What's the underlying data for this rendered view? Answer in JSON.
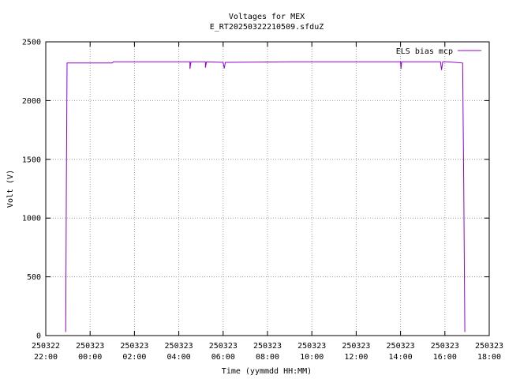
{
  "chart_data": {
    "type": "line",
    "title": "Voltages for MEX",
    "subtitle": "E_RT20250322210509.sfduZ",
    "xlabel": "Time (yymmdd HH:MM)",
    "ylabel": "Volt (V)",
    "ylim": [
      0,
      2500
    ],
    "xlim_hours": [
      22,
      40
    ],
    "grid": true,
    "legend_position": "top-right",
    "y_ticks": [
      0,
      500,
      1000,
      1500,
      2000,
      2500
    ],
    "x_ticks": [
      {
        "date": "250322",
        "time": "22:00",
        "h": 22
      },
      {
        "date": "250323",
        "time": "00:00",
        "h": 24
      },
      {
        "date": "250323",
        "time": "02:00",
        "h": 26
      },
      {
        "date": "250323",
        "time": "04:00",
        "h": 28
      },
      {
        "date": "250323",
        "time": "06:00",
        "h": 30
      },
      {
        "date": "250323",
        "time": "08:00",
        "h": 32
      },
      {
        "date": "250323",
        "time": "10:00",
        "h": 34
      },
      {
        "date": "250323",
        "time": "12:00",
        "h": 36
      },
      {
        "date": "250323",
        "time": "14:00",
        "h": 38
      },
      {
        "date": "250323",
        "time": "16:00",
        "h": 40
      },
      {
        "date": "250323",
        "time": "18:00",
        "h": 42
      }
    ],
    "series": [
      {
        "name": "ELS bias mcp",
        "color": "#9400d3",
        "points": [
          [
            22.9,
            30
          ],
          [
            22.93,
            1280
          ],
          [
            22.96,
            2320
          ],
          [
            25.0,
            2320
          ],
          [
            25.05,
            2330
          ],
          [
            28.5,
            2330
          ],
          [
            28.5,
            2270
          ],
          [
            28.55,
            2330
          ],
          [
            29.2,
            2330
          ],
          [
            29.2,
            2280
          ],
          [
            29.25,
            2330
          ],
          [
            30.0,
            2325
          ],
          [
            30.05,
            2275
          ],
          [
            30.1,
            2325
          ],
          [
            33.0,
            2330
          ],
          [
            36.0,
            2330
          ],
          [
            38.0,
            2330
          ],
          [
            38.02,
            2270
          ],
          [
            38.05,
            2330
          ],
          [
            39.8,
            2330
          ],
          [
            39.85,
            2260
          ],
          [
            39.9,
            2330
          ],
          [
            40.05,
            2330
          ],
          [
            40.1,
            2330
          ],
          [
            40.8,
            2320
          ],
          [
            40.85,
            1290
          ],
          [
            40.9,
            30
          ]
        ]
      }
    ]
  }
}
